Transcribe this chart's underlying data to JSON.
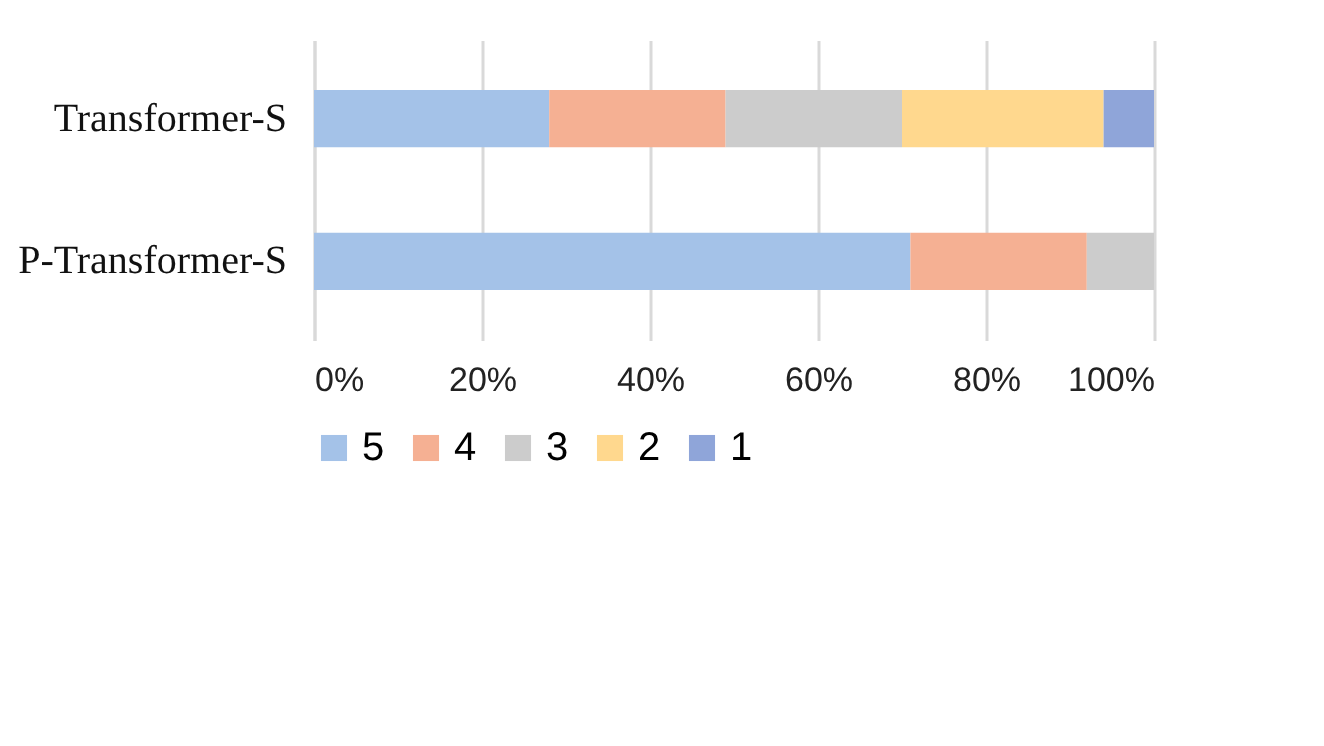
{
  "chart_data": {
    "type": "bar",
    "orientation": "horizontal",
    "stacked": true,
    "categories": [
      "Transformer-S",
      "P-Transformer-S"
    ],
    "series": [
      {
        "name": "5",
        "color": "#a4c2e8",
        "values": [
          28,
          71
        ]
      },
      {
        "name": "4",
        "color": "#f5b093",
        "values": [
          21,
          21
        ]
      },
      {
        "name": "3",
        "color": "#cccccc",
        "values": [
          21,
          8
        ]
      },
      {
        "name": "2",
        "color": "#ffd88e",
        "values": [
          24,
          null
        ]
      },
      {
        "name": "1",
        "color": "#8fa5d9",
        "values": [
          6,
          null
        ]
      }
    ],
    "xlim": [
      0,
      100
    ],
    "xticks": [
      {
        "value": 0,
        "label": "0%"
      },
      {
        "value": 20,
        "label": "20%"
      },
      {
        "value": 40,
        "label": "40%"
      },
      {
        "value": 60,
        "label": "60%"
      },
      {
        "value": 80,
        "label": "80%"
      },
      {
        "value": 100,
        "label": "100%"
      }
    ],
    "grid": "x",
    "legend": "bottom"
  }
}
